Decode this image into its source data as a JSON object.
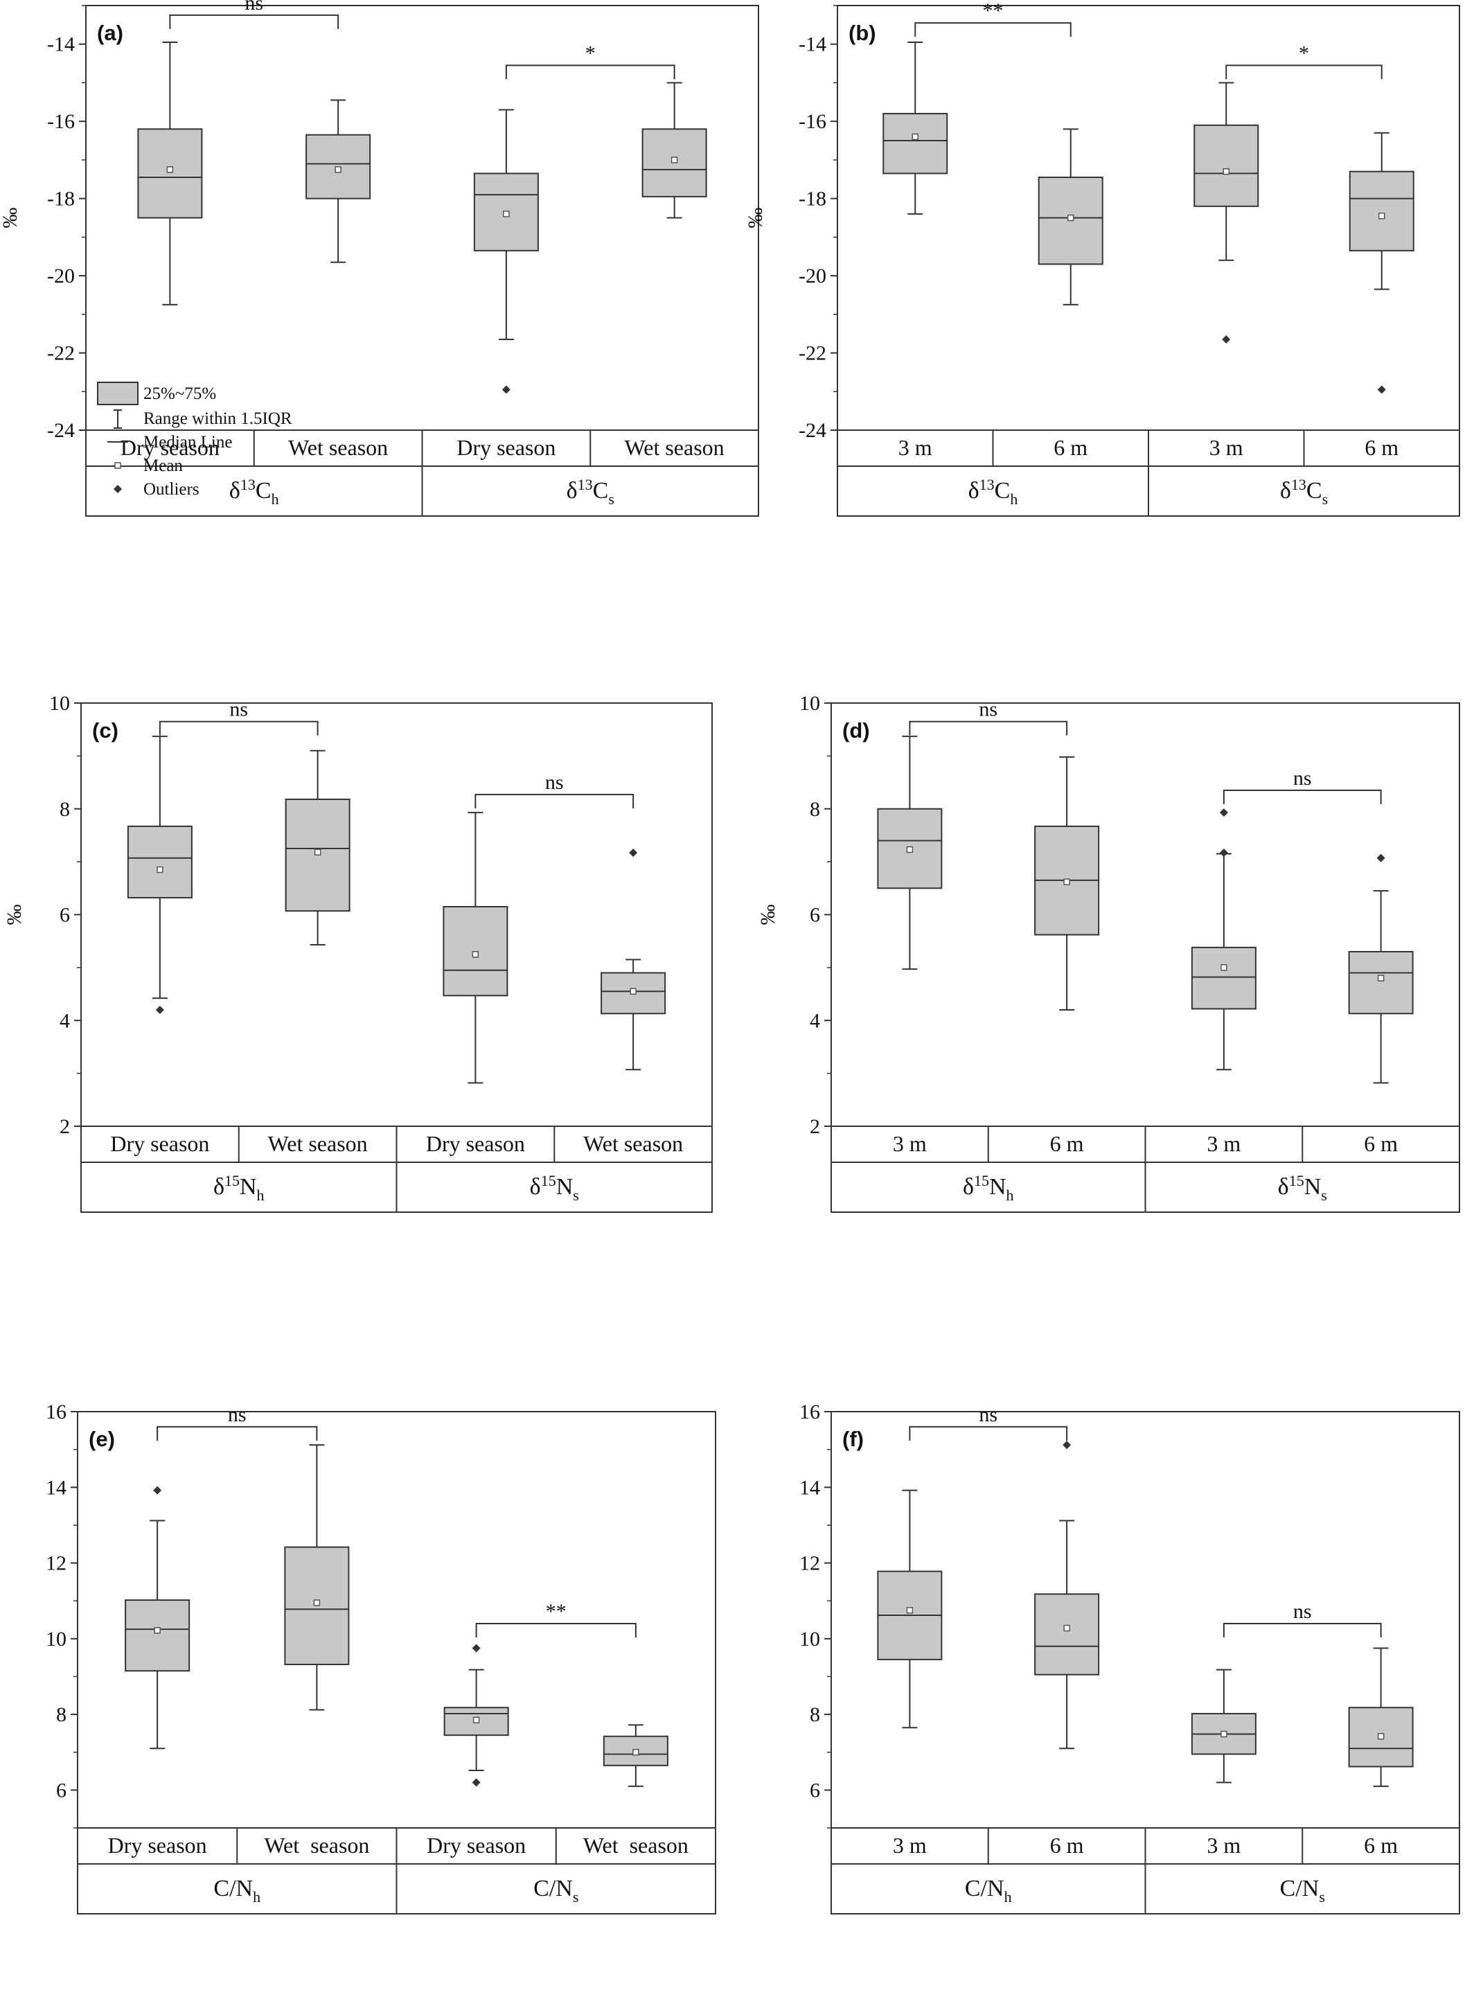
{
  "figure": {
    "colors": {
      "box_fill": "#c8c8c8",
      "line": "#333333",
      "outlier": "#333333",
      "background": "#ffffff"
    }
  },
  "chart_data": [
    {
      "type": "box",
      "panel_label": "(a)",
      "ylabel": "‰",
      "ylim": [
        -24,
        -13
      ],
      "yticks": [
        -14,
        -16,
        -18,
        -20,
        -22,
        -24
      ],
      "grid": false,
      "categories": [
        "Dry season",
        "Wet season",
        "Dry season",
        "Wet season"
      ],
      "groups": [
        {
          "label": "δ13Ch",
          "base": "δ",
          "sup": "13",
          "main": "C",
          "sub": "h",
          "span": [
            0,
            1
          ]
        },
        {
          "label": "δ13Cs",
          "base": "δ",
          "sup": "13",
          "main": "C",
          "sub": "s",
          "span": [
            2,
            3
          ]
        }
      ],
      "boxes": [
        {
          "whisker_low": -20.75,
          "q1": -18.5,
          "median": -17.45,
          "q3": -16.2,
          "whisker_high": -13.95,
          "mean": -17.25,
          "outliers": []
        },
        {
          "whisker_low": -19.65,
          "q1": -18.0,
          "median": -17.1,
          "q3": -16.35,
          "whisker_high": -15.45,
          "mean": -17.25,
          "outliers": []
        },
        {
          "whisker_low": -21.65,
          "q1": -19.35,
          "median": -17.9,
          "q3": -17.35,
          "whisker_high": -15.7,
          "mean": -18.4,
          "outliers": [
            -22.95
          ]
        },
        {
          "whisker_low": -18.5,
          "q1": -17.95,
          "median": -17.25,
          "q3": -16.2,
          "whisker_high": -15.0,
          "mean": -17.0,
          "outliers": []
        }
      ],
      "significance": [
        {
          "from": 0,
          "to": 1,
          "label": "ns",
          "y": -13.25
        },
        {
          "from": 2,
          "to": 3,
          "label": "*",
          "y": -14.55
        }
      ],
      "legend": {
        "placement": "lower-left",
        "items": [
          "25%~75%",
          "Range within 1.5IQR",
          "Median Line",
          "Mean",
          "Outliers"
        ]
      }
    },
    {
      "type": "box",
      "panel_label": "(b)",
      "ylabel": "‰",
      "ylim": [
        -24,
        -13
      ],
      "yticks": [
        -14,
        -16,
        -18,
        -20,
        -22,
        -24
      ],
      "grid": false,
      "categories": [
        "3 m",
        "6 m",
        "3 m",
        "6 m"
      ],
      "groups": [
        {
          "label": "δ13Ch",
          "base": "δ",
          "sup": "13",
          "main": "C",
          "sub": "h",
          "span": [
            0,
            1
          ]
        },
        {
          "label": "δ13Cs",
          "base": "δ",
          "sup": "13",
          "main": "C",
          "sub": "s",
          "span": [
            2,
            3
          ]
        }
      ],
      "boxes": [
        {
          "whisker_low": -18.4,
          "q1": -17.35,
          "median": -16.5,
          "q3": -15.8,
          "whisker_high": -13.95,
          "mean": -16.4,
          "outliers": []
        },
        {
          "whisker_low": -20.75,
          "q1": -19.7,
          "median": -18.5,
          "q3": -17.45,
          "whisker_high": -16.2,
          "mean": -18.5,
          "outliers": []
        },
        {
          "whisker_low": -19.6,
          "q1": -18.2,
          "median": -17.35,
          "q3": -16.1,
          "whisker_high": -15.0,
          "mean": -17.3,
          "outliers": [
            -21.65
          ]
        },
        {
          "whisker_low": -20.35,
          "q1": -19.35,
          "median": -18.0,
          "q3": -17.3,
          "whisker_high": -16.3,
          "mean": -18.45,
          "outliers": [
            -22.95
          ]
        }
      ],
      "significance": [
        {
          "from": 0,
          "to": 1,
          "label": "**",
          "y": -13.45
        },
        {
          "from": 2,
          "to": 3,
          "label": "*",
          "y": -14.55
        }
      ]
    },
    {
      "type": "box",
      "panel_label": "(c)",
      "ylabel": "‰",
      "ylim": [
        2,
        10
      ],
      "yticks": [
        10,
        8,
        6,
        4,
        2
      ],
      "grid": false,
      "categories": [
        "Dry season",
        "Wet season",
        "Dry season",
        "Wet season"
      ],
      "groups": [
        {
          "label": "δ15Nh",
          "base": "δ",
          "sup": "15",
          "main": "N",
          "sub": "h",
          "span": [
            0,
            1
          ]
        },
        {
          "label": "δ15Ns",
          "base": "δ",
          "sup": "15",
          "main": "N",
          "sub": "s",
          "span": [
            2,
            3
          ]
        }
      ],
      "boxes": [
        {
          "whisker_low": 4.42,
          "q1": 6.32,
          "median": 7.07,
          "q3": 7.67,
          "whisker_high": 9.37,
          "mean": 6.85,
          "outliers": [
            4.2
          ]
        },
        {
          "whisker_low": 5.43,
          "q1": 6.07,
          "median": 7.25,
          "q3": 8.18,
          "whisker_high": 9.1,
          "mean": 7.18,
          "outliers": []
        },
        {
          "whisker_low": 2.82,
          "q1": 4.47,
          "median": 4.95,
          "q3": 6.15,
          "whisker_high": 7.93,
          "mean": 5.25,
          "outliers": []
        },
        {
          "whisker_low": 3.07,
          "q1": 4.13,
          "median": 4.55,
          "q3": 4.9,
          "whisker_high": 5.15,
          "mean": 4.55,
          "outliers": [
            7.17
          ]
        }
      ],
      "significance": [
        {
          "from": 0,
          "to": 1,
          "label": "ns",
          "y": 9.65
        },
        {
          "from": 2,
          "to": 3,
          "label": "ns",
          "y": 8.27
        }
      ]
    },
    {
      "type": "box",
      "panel_label": "(d)",
      "ylabel": "‰",
      "ylim": [
        2,
        10
      ],
      "yticks": [
        10,
        8,
        6,
        4,
        2
      ],
      "grid": false,
      "categories": [
        "3 m",
        "6 m",
        "3 m",
        "6 m"
      ],
      "groups": [
        {
          "label": "δ15Nh",
          "base": "δ",
          "sup": "15",
          "main": "N",
          "sub": "h",
          "span": [
            0,
            1
          ]
        },
        {
          "label": "δ15Ns",
          "base": "δ",
          "sup": "15",
          "main": "N",
          "sub": "s",
          "span": [
            2,
            3
          ]
        }
      ],
      "boxes": [
        {
          "whisker_low": 4.97,
          "q1": 6.5,
          "median": 7.4,
          "q3": 8.0,
          "whisker_high": 9.37,
          "mean": 7.23,
          "outliers": []
        },
        {
          "whisker_low": 4.2,
          "q1": 5.62,
          "median": 6.65,
          "q3": 7.67,
          "whisker_high": 8.98,
          "mean": 6.62,
          "outliers": []
        },
        {
          "whisker_low": 3.07,
          "q1": 4.22,
          "median": 4.82,
          "q3": 5.38,
          "whisker_high": 7.15,
          "mean": 5.0,
          "outliers": [
            7.93,
            7.17
          ]
        },
        {
          "whisker_low": 2.82,
          "q1": 4.13,
          "median": 4.9,
          "q3": 5.3,
          "whisker_high": 6.45,
          "mean": 4.8,
          "outliers": [
            7.07
          ]
        }
      ],
      "significance": [
        {
          "from": 0,
          "to": 1,
          "label": "ns",
          "y": 9.65
        },
        {
          "from": 2,
          "to": 3,
          "label": "ns",
          "y": 8.35
        }
      ]
    },
    {
      "type": "box",
      "panel_label": "(e)",
      "ylabel": "",
      "ylim": [
        5,
        16
      ],
      "yticks": [
        16,
        14,
        12,
        10,
        8,
        6
      ],
      "grid": false,
      "categories": [
        "Dry season",
        "Wet  season",
        "Dry season",
        "Wet  season"
      ],
      "groups": [
        {
          "label": "C/Nh",
          "base": "",
          "sup": "",
          "main": "C/N",
          "sub": "h",
          "span": [
            0,
            1
          ]
        },
        {
          "label": "C/Ns",
          "base": "",
          "sup": "",
          "main": "C/N",
          "sub": "s",
          "span": [
            2,
            3
          ]
        }
      ],
      "boxes": [
        {
          "whisker_low": 7.1,
          "q1": 9.15,
          "median": 10.25,
          "q3": 11.02,
          "whisker_high": 13.12,
          "mean": 10.22,
          "outliers": [
            13.92
          ]
        },
        {
          "whisker_low": 8.12,
          "q1": 9.32,
          "median": 10.78,
          "q3": 12.42,
          "whisker_high": 15.12,
          "mean": 10.95,
          "outliers": []
        },
        {
          "whisker_low": 6.52,
          "q1": 7.45,
          "median": 8.02,
          "q3": 8.18,
          "whisker_high": 9.18,
          "mean": 7.85,
          "outliers": [
            9.75,
            6.2
          ]
        },
        {
          "whisker_low": 6.1,
          "q1": 6.65,
          "median": 6.95,
          "q3": 7.42,
          "whisker_high": 7.72,
          "mean": 7.0,
          "outliers": []
        }
      ],
      "significance": [
        {
          "from": 0,
          "to": 1,
          "label": "ns",
          "y": 15.6
        },
        {
          "from": 2,
          "to": 3,
          "label": "**",
          "y": 10.4
        }
      ]
    },
    {
      "type": "box",
      "panel_label": "(f)",
      "ylabel": "",
      "ylim": [
        5,
        16
      ],
      "yticks": [
        16,
        14,
        12,
        10,
        8,
        6
      ],
      "grid": false,
      "categories": [
        "3 m",
        "6 m",
        "3 m",
        "6 m"
      ],
      "groups": [
        {
          "label": "C/Nh",
          "base": "",
          "sup": "",
          "main": "C/N",
          "sub": "h",
          "span": [
            0,
            1
          ]
        },
        {
          "label": "C/Ns",
          "base": "",
          "sup": "",
          "main": "C/N",
          "sub": "s",
          "span": [
            2,
            3
          ]
        }
      ],
      "boxes": [
        {
          "whisker_low": 7.65,
          "q1": 9.45,
          "median": 10.62,
          "q3": 11.78,
          "whisker_high": 13.92,
          "mean": 10.75,
          "outliers": []
        },
        {
          "whisker_low": 7.1,
          "q1": 9.05,
          "median": 9.8,
          "q3": 11.18,
          "whisker_high": 13.12,
          "mean": 10.28,
          "outliers": [
            15.12
          ]
        },
        {
          "whisker_low": 6.2,
          "q1": 6.95,
          "median": 7.48,
          "q3": 8.02,
          "whisker_high": 9.18,
          "mean": 7.48,
          "outliers": []
        },
        {
          "whisker_low": 6.1,
          "q1": 6.62,
          "median": 7.1,
          "q3": 8.18,
          "whisker_high": 9.75,
          "mean": 7.42,
          "outliers": []
        }
      ],
      "significance": [
        {
          "from": 0,
          "to": 1,
          "label": "ns",
          "y": 15.6
        },
        {
          "from": 2,
          "to": 3,
          "label": "ns",
          "y": 10.4
        }
      ]
    }
  ]
}
